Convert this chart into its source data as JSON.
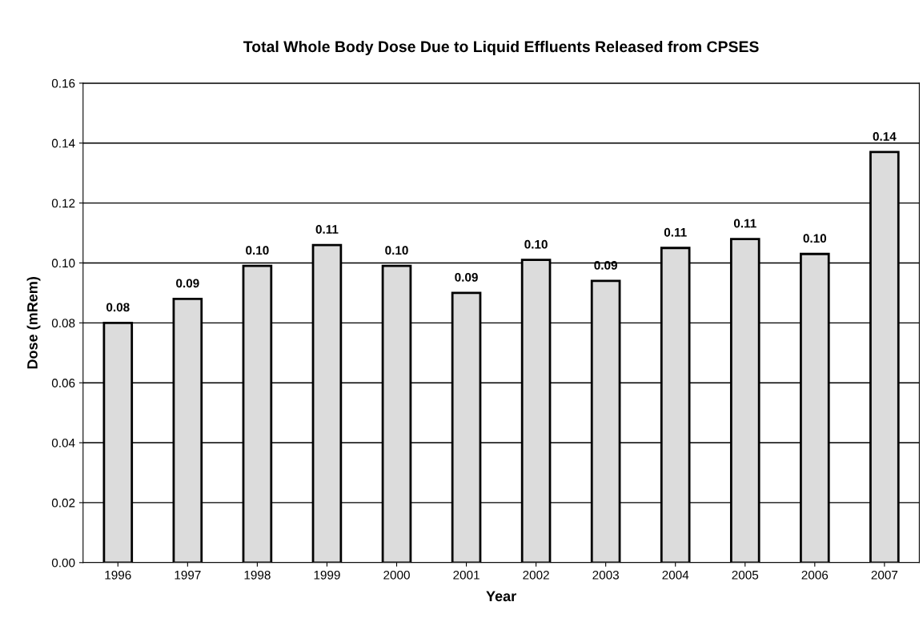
{
  "chart_data": {
    "type": "bar",
    "title": "Total Whole Body Dose Due to Liquid Effluents Released from CPSES",
    "xlabel": "Year",
    "ylabel": "Dose (mRem)",
    "categories": [
      "1996",
      "1997",
      "1998",
      "1999",
      "2000",
      "2001",
      "2002",
      "2003",
      "2004",
      "2005",
      "2006",
      "2007"
    ],
    "values": [
      0.08,
      0.088,
      0.099,
      0.106,
      0.099,
      0.09,
      0.101,
      0.094,
      0.105,
      0.108,
      0.103,
      0.137
    ],
    "value_labels": [
      "0.08",
      "0.09",
      "0.10",
      "0.11",
      "0.10",
      "0.09",
      "0.10",
      "0.09",
      "0.11",
      "0.11",
      "0.10",
      "0.14"
    ],
    "color": "#dcdcdc",
    "ylim": [
      0,
      0.16
    ],
    "yticks": [
      {
        "value": 0,
        "label": "0.00"
      },
      {
        "value": 0.02,
        "label": "0.02"
      },
      {
        "value": 0.04,
        "label": "0.04"
      },
      {
        "value": 0.06,
        "label": "0.06"
      },
      {
        "value": 0.08,
        "label": "0.08"
      },
      {
        "value": 0.1,
        "label": "0.10"
      },
      {
        "value": 0.12,
        "label": "0.12"
      },
      {
        "value": 0.14,
        "label": "0.14"
      },
      {
        "value": 0.16,
        "label": "0.16"
      }
    ],
    "grid": "y"
  }
}
